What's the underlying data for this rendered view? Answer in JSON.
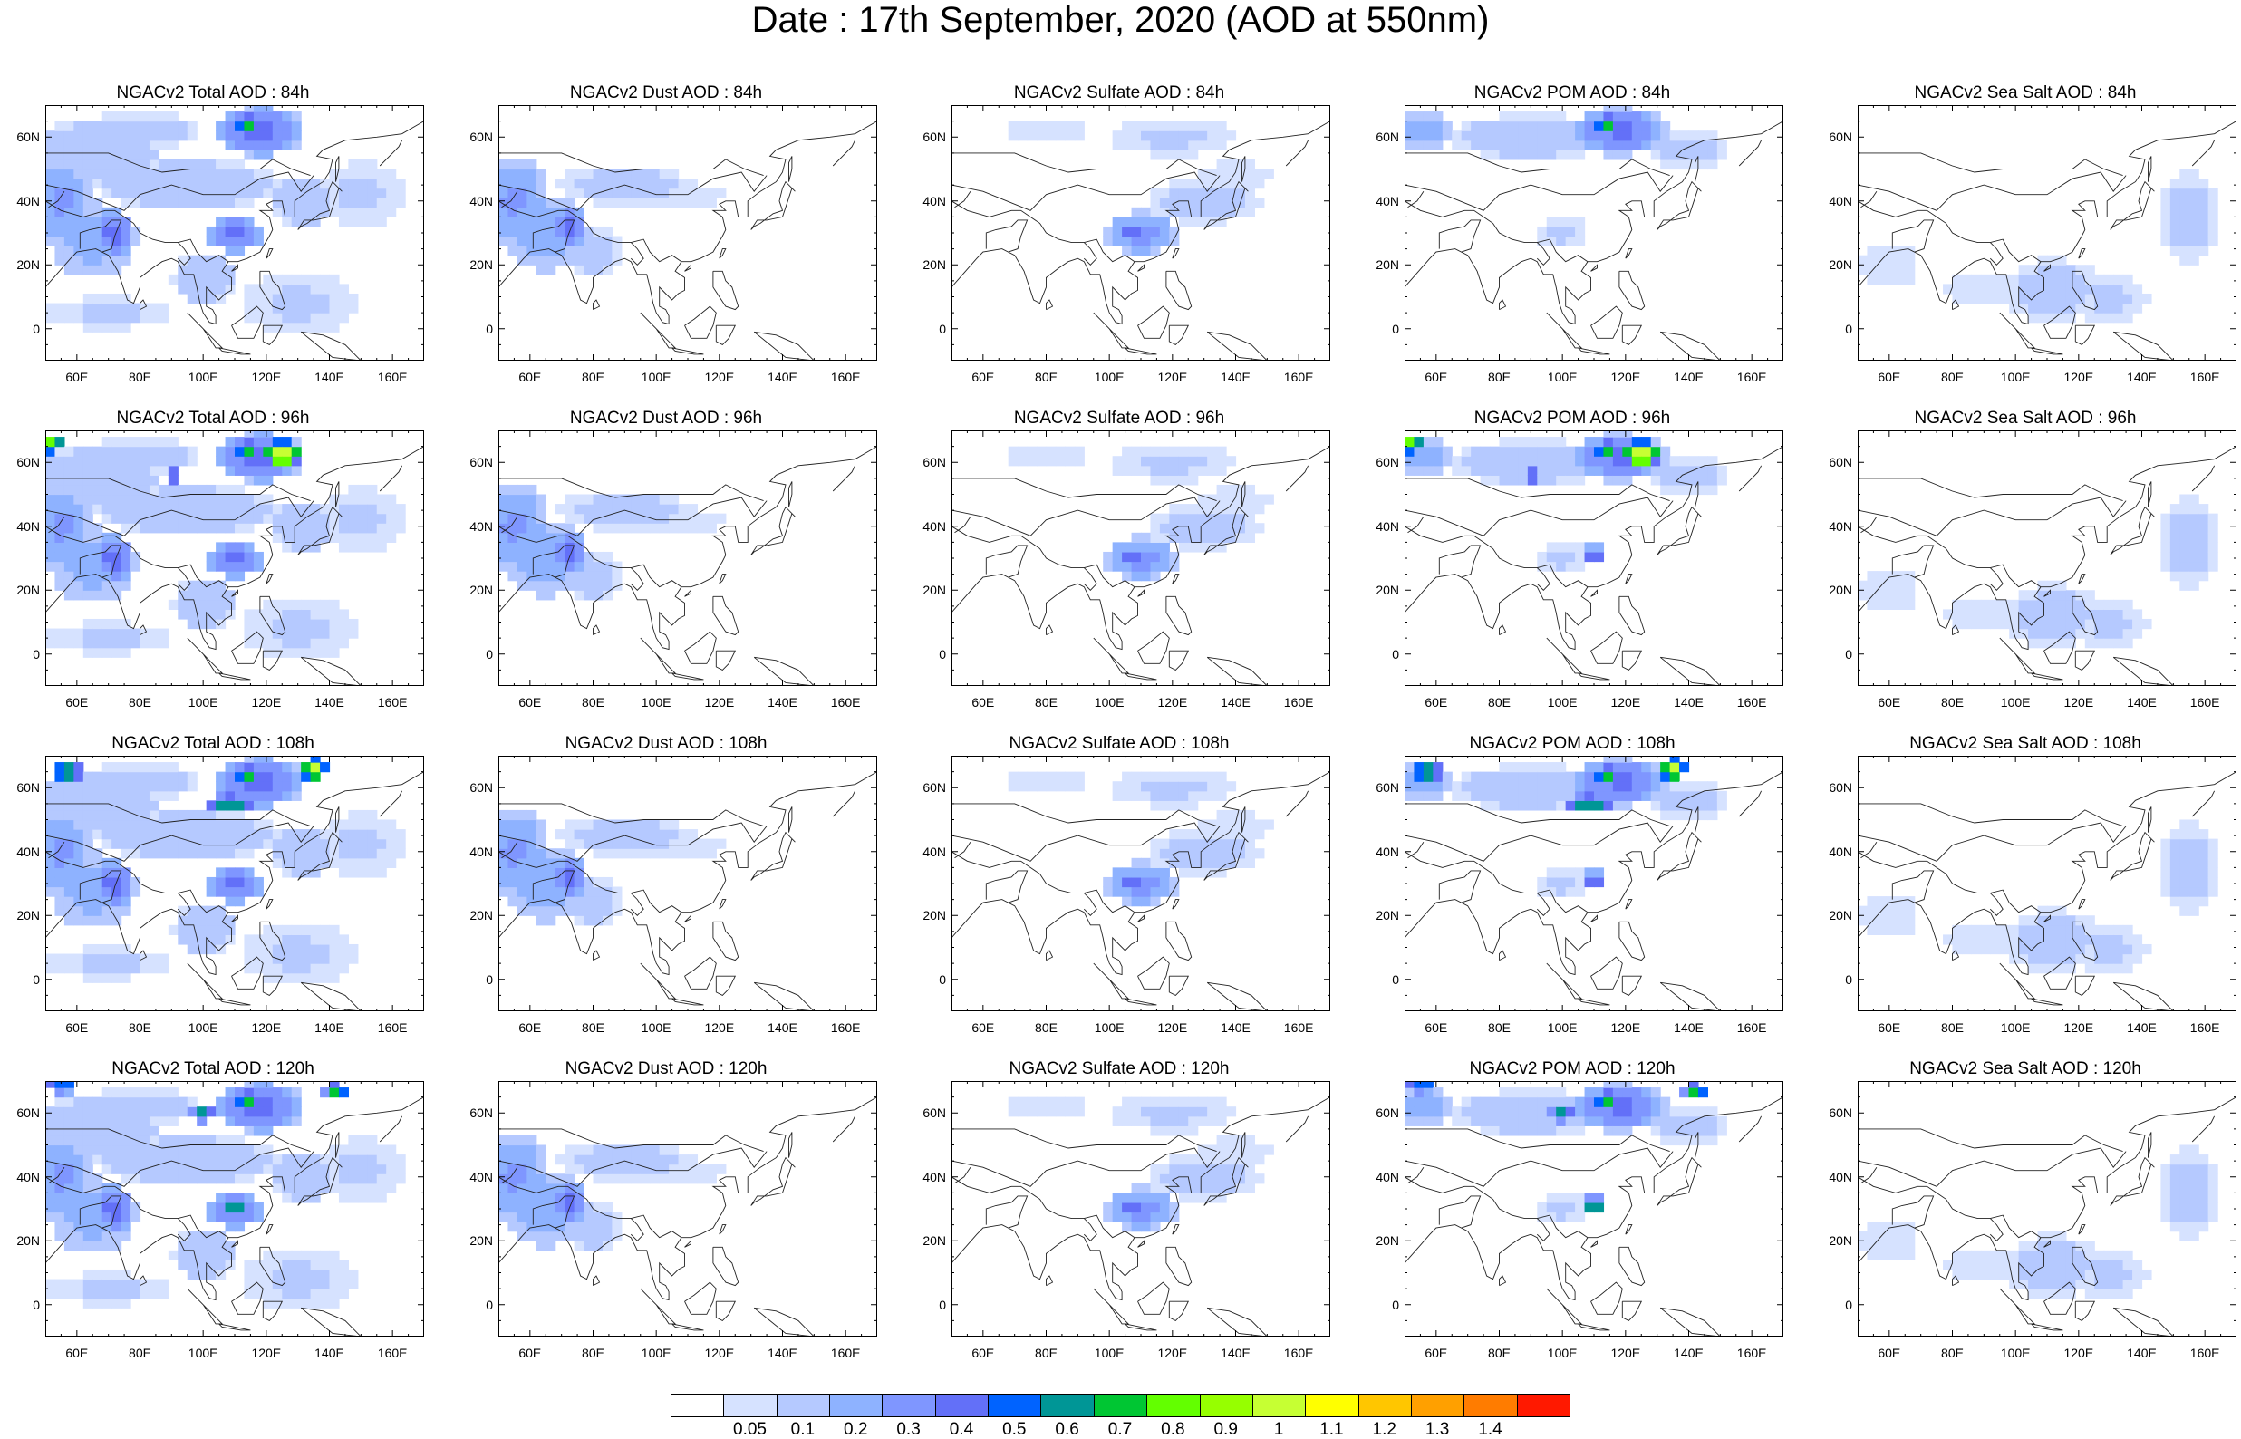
{
  "title": "Date : 17th September, 2020 (AOD at 550nm)",
  "panels": [
    [
      "NGACv2 Total AOD : 84h",
      "NGACv2 Dust AOD : 84h",
      "NGACv2 Sulfate AOD : 84h",
      "NGACv2 POM AOD : 84h",
      "NGACv2 Sea Salt AOD : 84h"
    ],
    [
      "NGACv2 Total AOD : 96h",
      "NGACv2 Dust AOD : 96h",
      "NGACv2 Sulfate AOD : 96h",
      "NGACv2 POM AOD : 96h",
      "NGACv2 Sea Salt AOD : 96h"
    ],
    [
      "NGACv2 Total AOD : 108h",
      "NGACv2 Dust AOD : 108h",
      "NGACv2 Sulfate AOD : 108h",
      "NGACv2 POM AOD : 108h",
      "NGACv2 Sea Salt AOD : 108h"
    ],
    [
      "NGACv2 Total AOD : 120h",
      "NGACv2 Dust AOD : 120h",
      "NGACv2 Sulfate AOD : 120h",
      "NGACv2 POM AOD : 120h",
      "NGACv2 Sea Salt  AOD : 120h"
    ]
  ],
  "lat_labels": [
    "60N",
    "40N",
    "20N",
    "0"
  ],
  "lon_labels": [
    "60E",
    "80E",
    "100E",
    "120E",
    "140E",
    "160E"
  ],
  "colorbar": {
    "labels": [
      "0.05",
      "0.1",
      "0.2",
      "0.3",
      "0.4",
      "0.5",
      "0.6",
      "0.7",
      "0.8",
      "0.9",
      "1",
      "1.1",
      "1.2",
      "1.3",
      "1.4"
    ],
    "colors": [
      "#ffffff",
      "#d6e2ff",
      "#b5c9ff",
      "#8eb2ff",
      "#7f96ff",
      "#6370f8",
      "#0063ff",
      "#009696",
      "#00c633",
      "#63ff00",
      "#96ff00",
      "#c6ff33",
      "#ffff00",
      "#ffc600",
      "#ffa000",
      "#ff7c00",
      "#ff1900"
    ]
  }
}
